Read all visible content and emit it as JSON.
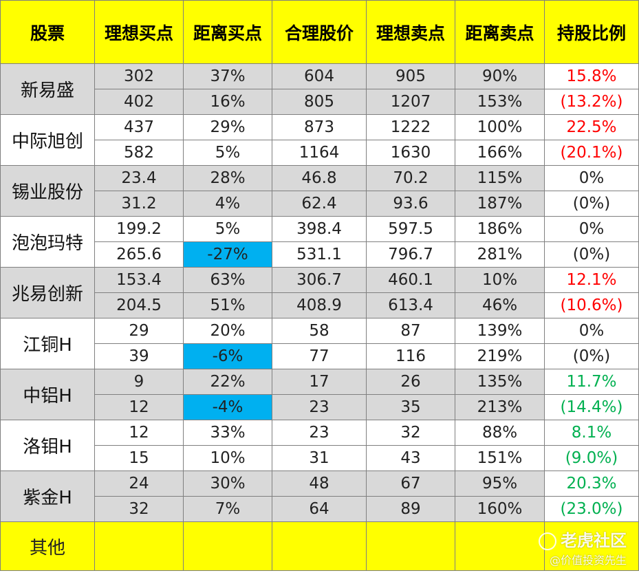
{
  "headers": [
    "股票",
    "理想买点",
    "距离买点",
    "合理股价",
    "理想卖点",
    "距离卖点",
    "持股比例"
  ],
  "stocks": [
    {
      "name": "新易盛",
      "band": "g",
      "rows": [
        [
          "302",
          "37%",
          "604",
          "905",
          "90%"
        ],
        [
          "402",
          "16%",
          "805",
          "1207",
          "153%"
        ]
      ],
      "holdings": [
        "15.8%",
        "(13.2%)"
      ],
      "holding_color": "red",
      "highlight": [
        false,
        false
      ]
    },
    {
      "name": "中际旭创",
      "band": "w",
      "rows": [
        [
          "437",
          "29%",
          "873",
          "1222",
          "100%"
        ],
        [
          "582",
          "5%",
          "1164",
          "1630",
          "166%"
        ]
      ],
      "holdings": [
        "22.5%",
        "(20.1%)"
      ],
      "holding_color": "red",
      "highlight": [
        false,
        false
      ]
    },
    {
      "name": "锡业股份",
      "band": "g",
      "rows": [
        [
          "23.4",
          "28%",
          "46.8",
          "70.2",
          "115%"
        ],
        [
          "31.2",
          "4%",
          "62.4",
          "93.6",
          "187%"
        ]
      ],
      "holdings": [
        "0%",
        "(0%)"
      ],
      "holding_color": "black",
      "highlight": [
        false,
        false
      ]
    },
    {
      "name": "泡泡玛特",
      "band": "w",
      "rows": [
        [
          "199.2",
          "5%",
          "398.4",
          "597.5",
          "186%"
        ],
        [
          "265.6",
          "-27%",
          "531.1",
          "796.7",
          "281%"
        ]
      ],
      "holdings": [
        "0%",
        "(0%)"
      ],
      "holding_color": "black",
      "highlight": [
        false,
        true
      ]
    },
    {
      "name": "兆易创新",
      "band": "g",
      "rows": [
        [
          "153.4",
          "63%",
          "306.7",
          "460.1",
          "10%"
        ],
        [
          "204.5",
          "51%",
          "408.9",
          "613.4",
          "46%"
        ]
      ],
      "holdings": [
        "12.1%",
        "(10.6%)"
      ],
      "holding_color": "red",
      "highlight": [
        false,
        false
      ]
    },
    {
      "name": "江铜H",
      "band": "w",
      "rows": [
        [
          "29",
          "20%",
          "58",
          "87",
          "139%"
        ],
        [
          "39",
          "-6%",
          "77",
          "116",
          "219%"
        ]
      ],
      "holdings": [
        "0%",
        "(0%)"
      ],
      "holding_color": "black",
      "highlight": [
        false,
        true
      ]
    },
    {
      "name": "中铝H",
      "band": "g",
      "rows": [
        [
          "9",
          "22%",
          "17",
          "26",
          "135%"
        ],
        [
          "12",
          "-4%",
          "23",
          "35",
          "213%"
        ]
      ],
      "holdings": [
        "11.7%",
        "(14.4%)"
      ],
      "holding_color": "green",
      "highlight": [
        false,
        true
      ]
    },
    {
      "name": "洛钼H",
      "band": "w",
      "rows": [
        [
          "12",
          "33%",
          "23",
          "32",
          "88%"
        ],
        [
          "15",
          "10%",
          "31",
          "43",
          "151%"
        ]
      ],
      "holdings": [
        "8.1%",
        "(9.0%)"
      ],
      "holding_color": "green",
      "highlight": [
        false,
        false
      ]
    },
    {
      "name": "紫金H",
      "band": "g",
      "rows": [
        [
          "24",
          "30%",
          "48",
          "67",
          "95%"
        ],
        [
          "32",
          "7%",
          "64",
          "89",
          "160%"
        ]
      ],
      "holdings": [
        "20.3%",
        "(23.0%)"
      ],
      "holding_color": "green",
      "highlight": [
        false,
        false
      ]
    }
  ],
  "other": {
    "label": "其他"
  },
  "watermark": {
    "brand": "老虎社区",
    "author": "@价值投资先生"
  }
}
